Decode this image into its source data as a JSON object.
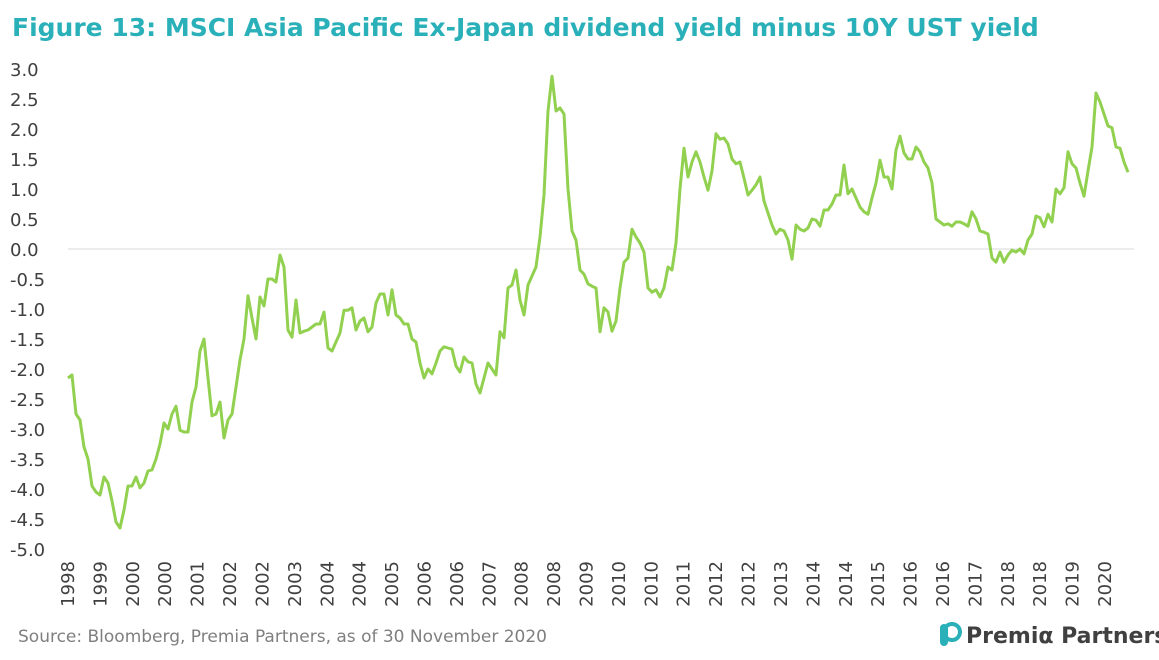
{
  "chart_data": {
    "type": "line",
    "title": "Figure 13: MSCI Asia Pacific Ex-Japan dividend yield minus 10Y UST yield",
    "source": "Source: Bloomberg, Premia Partners, as of 30 November 2020",
    "brand": "Premiα Partners",
    "x_labels": [
      "1998",
      "1999",
      "2000",
      "2000",
      "2001",
      "2002",
      "2002",
      "2003",
      "2004",
      "2004",
      "2005",
      "2006",
      "2006",
      "2007",
      "2008",
      "2008",
      "2009",
      "2010",
      "2010",
      "2011",
      "2012",
      "2012",
      "2013",
      "2014",
      "2014",
      "2015",
      "2016",
      "2016",
      "2017",
      "2018",
      "2018",
      "2019",
      "2020"
    ],
    "color": "#92d050",
    "ylim": [
      -5,
      3
    ],
    "yticks": [
      {
        "value": 3,
        "label": "3.0"
      },
      {
        "value": 2.5,
        "label": "2.5"
      },
      {
        "value": 2,
        "label": "2.0"
      },
      {
        "value": 1.5,
        "label": "1.5"
      },
      {
        "value": 1,
        "label": "1.0"
      },
      {
        "value": 0.5,
        "label": "0.5"
      },
      {
        "value": 0,
        "label": "0.0"
      },
      {
        "value": -0.5,
        "label": "-0.5"
      },
      {
        "value": -1,
        "label": "-1.0"
      },
      {
        "value": -1.5,
        "label": "-1.5"
      },
      {
        "value": -2,
        "label": "-2.0"
      },
      {
        "value": -2.5,
        "label": "-2.5"
      },
      {
        "value": -3,
        "label": "-3.0"
      },
      {
        "value": -3.5,
        "label": "-3.5"
      },
      {
        "value": -4,
        "label": "-4.0"
      },
      {
        "value": -4.5,
        "label": "-4.5"
      },
      {
        "value": -5,
        "label": "-5.0"
      }
    ],
    "values": [
      -2.15,
      -2.1,
      -2.75,
      -2.85,
      -3.3,
      -3.5,
      -3.95,
      -4.05,
      -4.1,
      -3.8,
      -3.9,
      -4.2,
      -4.55,
      -4.65,
      -4.35,
      -3.95,
      -3.95,
      -3.8,
      -3.98,
      -3.9,
      -3.7,
      -3.68,
      -3.5,
      -3.25,
      -2.9,
      -3.0,
      -2.75,
      -2.62,
      -3.02,
      -3.05,
      -3.05,
      -2.55,
      -2.3,
      -1.7,
      -1.5,
      -2.15,
      -2.78,
      -2.75,
      -2.55,
      -3.15,
      -2.85,
      -2.75,
      -2.3,
      -1.85,
      -1.5,
      -0.78,
      -1.15,
      -1.5,
      -0.8,
      -0.95,
      -0.5,
      -0.5,
      -0.55,
      -0.1,
      -0.3,
      -1.35,
      -1.47,
      -0.85,
      -1.4,
      -1.37,
      -1.35,
      -1.3,
      -1.25,
      -1.25,
      -1.05,
      -1.65,
      -1.7,
      -1.55,
      -1.4,
      -1.02,
      -1.02,
      -0.98,
      -1.35,
      -1.2,
      -1.15,
      -1.38,
      -1.3,
      -0.9,
      -0.75,
      -0.75,
      -1.1,
      -0.68,
      -1.1,
      -1.15,
      -1.25,
      -1.25,
      -1.5,
      -1.55,
      -1.9,
      -2.15,
      -2.0,
      -2.08,
      -1.9,
      -1.7,
      -1.63,
      -1.65,
      -1.67,
      -1.95,
      -2.05,
      -1.8,
      -1.88,
      -1.9,
      -2.25,
      -2.4,
      -2.15,
      -1.9,
      -2.0,
      -2.1,
      -1.38,
      -1.48,
      -0.65,
      -0.6,
      -0.35,
      -0.85,
      -1.1,
      -0.6,
      -0.45,
      -0.3,
      0.2,
      0.9,
      2.3,
      2.88,
      2.3,
      2.35,
      2.25,
      1.0,
      0.3,
      0.15,
      -0.35,
      -0.42,
      -0.58,
      -0.62,
      -0.65,
      -1.38,
      -0.98,
      -1.05,
      -1.37,
      -1.2,
      -0.65,
      -0.22,
      -0.15,
      0.33,
      0.2,
      0.1,
      -0.05,
      -0.65,
      -0.72,
      -0.68,
      -0.8,
      -0.65,
      -0.3,
      -0.35,
      0.1,
      1.0,
      1.68,
      1.2,
      1.45,
      1.62,
      1.45,
      1.2,
      0.98,
      1.3,
      1.92,
      1.83,
      1.85,
      1.75,
      1.5,
      1.42,
      1.45,
      1.18,
      0.9,
      0.98,
      1.07,
      1.2,
      0.8,
      0.6,
      0.4,
      0.25,
      0.33,
      0.3,
      0.15,
      -0.17,
      0.4,
      0.33,
      0.3,
      0.35,
      0.5,
      0.48,
      0.38,
      0.65,
      0.65,
      0.75,
      0.9,
      0.9,
      1.4,
      0.92,
      1.0,
      0.85,
      0.7,
      0.62,
      0.58,
      0.85,
      1.1,
      1.48,
      1.2,
      1.2,
      1.0,
      1.65,
      1.88,
      1.6,
      1.5,
      1.5,
      1.7,
      1.62,
      1.45,
      1.35,
      1.1,
      0.5,
      0.45,
      0.4,
      0.42,
      0.38,
      0.45,
      0.45,
      0.42,
      0.38,
      0.62,
      0.5,
      0.3,
      0.28,
      0.25,
      -0.15,
      -0.22,
      -0.05,
      -0.22,
      -0.1,
      -0.02,
      -0.05,
      0.0,
      -0.08,
      0.15,
      0.25,
      0.55,
      0.52,
      0.37,
      0.58,
      0.45,
      1.0,
      0.92,
      1.02,
      1.62,
      1.42,
      1.35,
      1.1,
      0.88,
      1.3,
      1.7,
      2.6,
      2.45,
      2.25,
      2.05,
      2.02,
      1.7,
      1.68,
      1.45,
      1.28
    ]
  }
}
